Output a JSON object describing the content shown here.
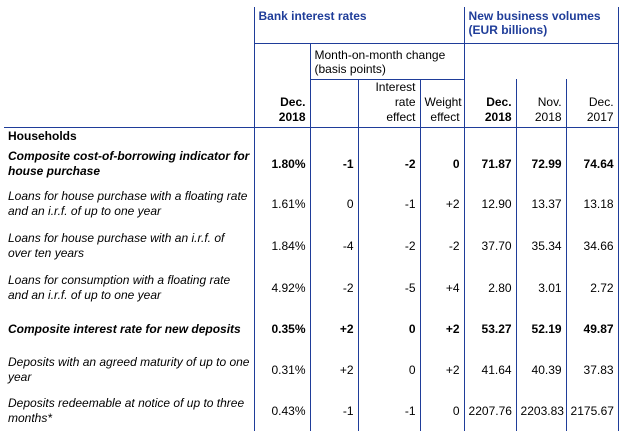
{
  "header": {
    "group_rates": "Bank interest rates",
    "group_volumes": "New business volumes (EUR billions)",
    "mom_change": "Month-on-month change (basis points)",
    "col_dec2018_rate": "Dec. 2018",
    "col_interest_effect": "Interest rate effect",
    "col_weight_effect": "Weight effect",
    "col_vol_dec2018": "Dec. 2018",
    "col_vol_nov2018": "Nov. 2018",
    "col_vol_dec2017": "Dec. 2017"
  },
  "section_households": "Households",
  "rows": [
    {
      "label": "Composite cost-of-borrowing indicator for house purchase",
      "rate": "1.80%",
      "mom": "-1",
      "ire": "-2",
      "we": "0",
      "v1": "71.87",
      "v2": "72.99",
      "v3": "74.64"
    },
    {
      "label": "Loans for house purchase with a floating rate and an i.r.f. of up to one year",
      "rate": "1.61%",
      "mom": "0",
      "ire": "-1",
      "we": "+2",
      "v1": "12.90",
      "v2": "13.37",
      "v3": "13.18"
    },
    {
      "label": "Loans for house purchase with an i.r.f. of over ten years",
      "rate": "1.84%",
      "mom": "-4",
      "ire": "-2",
      "we": "-2",
      "v1": "37.70",
      "v2": "35.34",
      "v3": "34.66"
    },
    {
      "label": "Loans for consumption with a floating rate and an i.r.f. of up to one year",
      "rate": "4.92%",
      "mom": "-2",
      "ire": "-5",
      "we": "+4",
      "v1": "2.80",
      "v2": "3.01",
      "v3": "2.72"
    },
    {
      "label": "Composite interest rate for new deposits",
      "rate": "0.35%",
      "mom": "+2",
      "ire": "0",
      "we": "+2",
      "v1": "53.27",
      "v2": "52.19",
      "v3": "49.87"
    },
    {
      "label": "Deposits with an agreed maturity of up to one year",
      "rate": "0.31%",
      "mom": "+2",
      "ire": "0",
      "we": "+2",
      "v1": "41.64",
      "v2": "40.39",
      "v3": "37.83"
    },
    {
      "label": "Deposits redeemable at notice of up to three months*",
      "rate": "0.43%",
      "mom": "-1",
      "ire": "-1",
      "we": "0",
      "v1": "2207.76",
      "v2": "2203.83",
      "v3": "2175.67"
    }
  ]
}
